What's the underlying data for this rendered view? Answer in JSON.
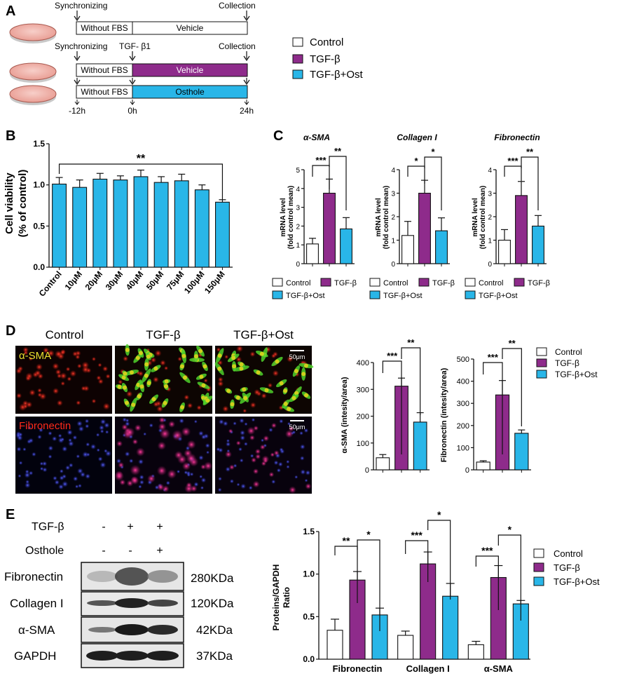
{
  "colors": {
    "control": "#ffffff",
    "tgf": "#8e2b8b",
    "ost": "#29b6e8",
    "stroke": "#111111",
    "dish_fill": "#f2b7b0",
    "dish_stroke": "#c0504d"
  },
  "panels": {
    "A": {
      "letter": "A",
      "sync1": "Synchronizing",
      "sync2": "Synchronizing",
      "collect1": "Collection",
      "collect2": "Collection",
      "tgf_label": "TGF- β1",
      "without_fbs": "Without FBS",
      "vehicle": "Vehicle",
      "osthole": "Osthole",
      "t_minus12": "-12h",
      "t0": "0h",
      "t24": "24h",
      "legend": [
        "Control",
        "TGF-β",
        "TGF-β+Ost"
      ]
    },
    "B": {
      "letter": "B",
      "ylabel_line1": "Cell viability",
      "ylabel_line2": "(% of control)",
      "yticks": [
        "0.0",
        "0.5",
        "1.0",
        "1.5"
      ],
      "sig": "**"
    },
    "C": {
      "letter": "C",
      "ylabel_line1": "mRNA level",
      "ylabel_line2": "(fold control mean)",
      "legend_control": "Control",
      "legend_tgf": "TGF-β",
      "legend_ost": "TGF-β+Ost"
    },
    "D": {
      "letter": "D",
      "col_headers": [
        "Control",
        "TGF-β",
        "TGF-β+Ost"
      ],
      "row_labels": [
        "α-SMA",
        "Fibronectin"
      ],
      "scale": "50μm",
      "legend": [
        "Control",
        "TGF-β",
        "TGF-β+Ost"
      ]
    },
    "E": {
      "letter": "E",
      "row_tgf": "TGF-β",
      "row_ost": "Osthole",
      "tgf_signs": [
        "-",
        "+",
        "+"
      ],
      "ost_signs": [
        "-",
        "-",
        "+"
      ],
      "bands": [
        {
          "name": "Fibronectin",
          "kda": "280KDa"
        },
        {
          "name": "Collagen I",
          "kda": "120KDa"
        },
        {
          "name": "α-SMA",
          "kda": "42KDa"
        },
        {
          "name": "GAPDH",
          "kda": "37KDa"
        }
      ],
      "legend": [
        "Control",
        "TGF-β",
        "TGF-β+Ost"
      ]
    }
  },
  "chart_data": [
    {
      "id": "B",
      "type": "bar",
      "ylabel": "Cell viability (% of control)",
      "ylim": [
        0,
        1.5
      ],
      "categories": [
        "Control",
        "10μM",
        "20μM",
        "30μM",
        "40μM",
        "50μM",
        "75μM",
        "100μM",
        "150μM"
      ],
      "values": [
        1.01,
        0.97,
        1.07,
        1.06,
        1.1,
        1.03,
        1.05,
        0.94,
        0.79
      ],
      "errors": [
        0.08,
        0.09,
        0.07,
        0.05,
        0.08,
        0.07,
        0.08,
        0.06,
        0.03
      ],
      "annotations": [
        {
          "from": "Control",
          "to": "150μM",
          "label": "**"
        }
      ]
    },
    {
      "id": "C1",
      "type": "bar",
      "title": "α-SMA",
      "ylabel": "mRNA level (fold control mean)",
      "ylim": [
        0,
        5
      ],
      "yticks": [
        "0",
        "1",
        "2",
        "3",
        "4",
        "5"
      ],
      "categories": [
        "Control",
        "TGF-β",
        "TGF-β+Ost"
      ],
      "values": [
        1.05,
        3.75,
        1.85
      ],
      "errors": [
        0.3,
        0.75,
        0.6
      ],
      "annotations": [
        {
          "from": 0,
          "to": 1,
          "label": "***"
        },
        {
          "from": 1,
          "to": 2,
          "label": "**"
        }
      ]
    },
    {
      "id": "C2",
      "type": "bar",
      "title": "Collagen I",
      "ylabel": "mRNA level (fold control mean)",
      "ylim": [
        0,
        4
      ],
      "yticks": [
        "0",
        "1",
        "2",
        "3",
        "4"
      ],
      "categories": [
        "Control",
        "TGF-β",
        "TGF-β+Ost"
      ],
      "values": [
        1.2,
        3.0,
        1.4
      ],
      "errors": [
        0.6,
        0.55,
        0.55
      ],
      "annotations": [
        {
          "from": 0,
          "to": 1,
          "label": "*"
        },
        {
          "from": 1,
          "to": 2,
          "label": "*"
        }
      ]
    },
    {
      "id": "C3",
      "type": "bar",
      "title": "Fibronectin",
      "ylabel": "mRNA level (fold control mean)",
      "ylim": [
        0,
        4
      ],
      "yticks": [
        "0",
        "1",
        "2",
        "3",
        "4"
      ],
      "categories": [
        "Control",
        "TGF-β",
        "TGF-β+Ost"
      ],
      "values": [
        1.0,
        2.9,
        1.6
      ],
      "errors": [
        0.45,
        0.6,
        0.45
      ],
      "annotations": [
        {
          "from": 0,
          "to": 1,
          "label": "***"
        },
        {
          "from": 1,
          "to": 2,
          "label": "**"
        }
      ]
    },
    {
      "id": "D1",
      "type": "bar",
      "ylabel": "α-SMA (intesity/area)",
      "ylim": [
        0,
        400
      ],
      "yticks": [
        "0",
        "100",
        "200",
        "300",
        "400"
      ],
      "categories": [
        "Control",
        "TGF-β",
        "TGF-β+Ost"
      ],
      "values": [
        45,
        312,
        178
      ],
      "errors": [
        12,
        30,
        35
      ],
      "annotations": [
        {
          "from": 0,
          "to": 1,
          "label": "***"
        },
        {
          "from": 1,
          "to": 2,
          "label": "**"
        }
      ]
    },
    {
      "id": "D2",
      "type": "bar",
      "ylabel": "Fibronectin (intesity/area)",
      "ylim": [
        0,
        500
      ],
      "yticks": [
        "0",
        "100",
        "200",
        "300",
        "400",
        "500"
      ],
      "categories": [
        "Control",
        "TGF-β",
        "TGF-β+Ost"
      ],
      "values": [
        35,
        338,
        165
      ],
      "errors": [
        6,
        65,
        15
      ],
      "annotations": [
        {
          "from": 0,
          "to": 1,
          "label": "***"
        },
        {
          "from": 1,
          "to": 2,
          "label": "**"
        }
      ]
    },
    {
      "id": "E",
      "type": "bar",
      "ylabel": "Proteins/GAPDH Ratio",
      "ylim": [
        0,
        1.5
      ],
      "yticks": [
        "0.0",
        "0.5",
        "1.0",
        "1.5"
      ],
      "categories": [
        "Fibronectin",
        "Collagen I",
        "α-SMA"
      ],
      "series": [
        {
          "name": "Control",
          "values": [
            0.34,
            0.28,
            0.17
          ],
          "errors": [
            0.13,
            0.05,
            0.04
          ]
        },
        {
          "name": "TGF-β",
          "values": [
            0.93,
            1.12,
            0.96
          ],
          "errors": [
            0.1,
            0.14,
            0.14
          ]
        },
        {
          "name": "TGF-β+Ost",
          "values": [
            0.52,
            0.74,
            0.65
          ],
          "errors": [
            0.08,
            0.15,
            0.04
          ]
        }
      ],
      "annotations": [
        {
          "group": 0,
          "from": 0,
          "to": 1,
          "label": "**"
        },
        {
          "group": 0,
          "from": 1,
          "to": 2,
          "label": "*"
        },
        {
          "group": 1,
          "from": 0,
          "to": 1,
          "label": "***"
        },
        {
          "group": 1,
          "from": 1,
          "to": 2,
          "label": "*"
        },
        {
          "group": 2,
          "from": 0,
          "to": 1,
          "label": "***"
        },
        {
          "group": 2,
          "from": 1,
          "to": 2,
          "label": "*"
        }
      ]
    }
  ]
}
